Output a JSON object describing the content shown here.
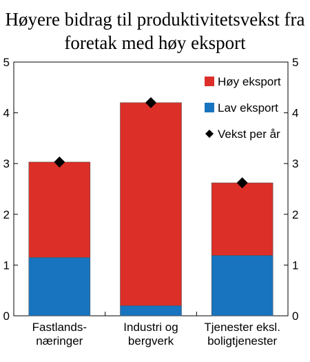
{
  "chart_data": {
    "type": "bar",
    "stacked": true,
    "title_lines": [
      "Høyere bidrag til produktivitetsvekst fra",
      "foretak med høy eksport"
    ],
    "categories": [
      [
        "Fastlands-",
        "næringer"
      ],
      [
        "Industri og",
        "bergverk"
      ],
      [
        "Tjenester eksl.",
        "boligtjenester"
      ]
    ],
    "series": [
      {
        "name": "Lav eksport",
        "values": [
          1.15,
          0.2,
          1.19
        ],
        "color": "#1874be"
      },
      {
        "name": "Høy eksport",
        "values": [
          1.88,
          4.0,
          1.43
        ],
        "color": "#dc2f28"
      }
    ],
    "markers": {
      "name": "Vekst per år",
      "values": [
        3.03,
        4.2,
        2.62
      ],
      "color": "#000000",
      "shape": "diamond"
    },
    "legend_order": [
      "Høy eksport",
      "Lav eksport",
      "Vekst per år"
    ],
    "legend_position": "top-right",
    "ylim": [
      0,
      5
    ],
    "yticks": [
      0,
      1,
      2,
      3,
      4,
      5
    ],
    "y_axis_both_sides": true,
    "grid": false,
    "xlabel": "",
    "ylabel": ""
  }
}
